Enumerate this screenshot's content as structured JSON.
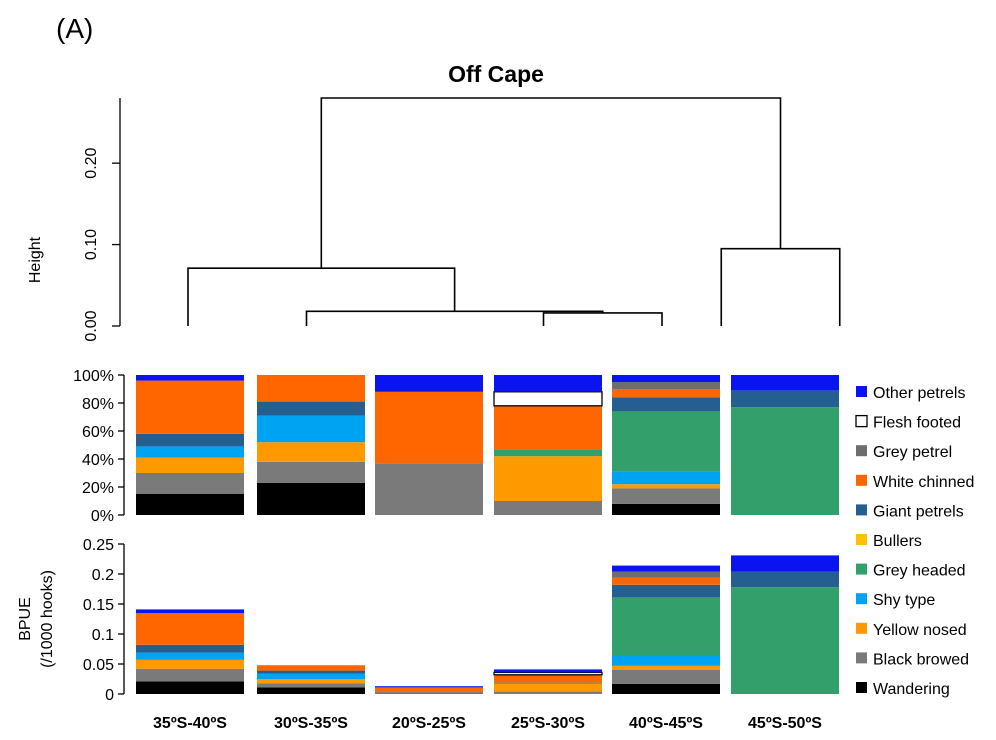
{
  "panel_label": "(A)",
  "title": "Off Cape",
  "dendrogram": {
    "ylabel": "Height",
    "yticks": [
      "0.00",
      "0.10",
      "0.20"
    ],
    "ticks_values": [
      0,
      0.1,
      0.2
    ],
    "ylim": [
      0,
      0.28
    ],
    "nodes": [
      {
        "name": "n1",
        "left": 3,
        "right": 4,
        "height": 0.016
      },
      {
        "name": "n2",
        "left": 1,
        "right": "n1",
        "height": 0.018
      },
      {
        "name": "n3",
        "left": 0,
        "right": "n2",
        "height": 0.071
      },
      {
        "name": "n4",
        "left": 4.5,
        "right": 5.5,
        "height": 0.095
      },
      {
        "name": "n5",
        "left": "n3",
        "right": "n4",
        "height": 0.28
      }
    ]
  },
  "chart_data": [
    {
      "type": "bar",
      "stacked": true,
      "ylabel": "",
      "ylim": [
        0,
        100
      ],
      "yticks": [
        "0%",
        "20%",
        "40%",
        "60%",
        "80%",
        "100%"
      ],
      "tick_values": [
        0,
        20,
        40,
        60,
        80,
        100
      ],
      "categories": [
        "35ºS-40ºS",
        "30ºS-35ºS",
        "20ºS-25ºS",
        "25ºS-30ºS",
        "40ºS-45ºS",
        "45ºS-50ºS"
      ],
      "series": [
        {
          "name": "Wandering",
          "values": [
            15,
            23,
            0,
            0,
            8,
            0
          ]
        },
        {
          "name": "Black browed",
          "values": [
            15,
            15,
            37,
            10,
            11,
            0
          ]
        },
        {
          "name": "Yellow nosed",
          "values": [
            11,
            14,
            0,
            32,
            3,
            0
          ]
        },
        {
          "name": "Shy type",
          "values": [
            8,
            19,
            0,
            0,
            9,
            0
          ]
        },
        {
          "name": "Grey headed",
          "values": [
            0,
            0,
            0,
            5,
            43,
            77
          ]
        },
        {
          "name": "Bullers",
          "values": [
            0,
            0,
            0,
            0,
            0,
            0
          ]
        },
        {
          "name": "Giant petrels",
          "values": [
            9,
            10,
            0,
            0,
            10,
            12
          ]
        },
        {
          "name": "White chinned",
          "values": [
            38,
            19,
            51,
            31,
            6,
            0
          ]
        },
        {
          "name": "Grey petrel",
          "values": [
            0,
            0,
            0,
            0,
            5,
            0
          ]
        },
        {
          "name": "Flesh footed",
          "values": [
            0,
            0,
            0,
            10,
            0,
            0
          ]
        },
        {
          "name": "Other petrels",
          "values": [
            4,
            0,
            12,
            12,
            5,
            11
          ]
        }
      ]
    },
    {
      "type": "bar",
      "stacked": true,
      "ylabel": "BPUE",
      "ylabel2": "(/1000 hooks)",
      "ylim": [
        0,
        0.25
      ],
      "yticks": [
        "0",
        "0.05",
        "0.1",
        "0.15",
        "0.2",
        "0.25"
      ],
      "tick_values": [
        0,
        0.05,
        0.1,
        0.15,
        0.2,
        0.25
      ],
      "categories": [
        "35ºS-40ºS",
        "30ºS-35ºS",
        "20ºS-25ºS",
        "25ºS-30ºS",
        "40ºS-45ºS",
        "45ºS-50ºS"
      ],
      "series": [
        {
          "name": "Wandering",
          "values": [
            0.021,
            0.011,
            0,
            0,
            0.017,
            0
          ]
        },
        {
          "name": "Black browed",
          "values": [
            0.021,
            0.007,
            0.004,
            0.004,
            0.023,
            0
          ]
        },
        {
          "name": "Yellow nosed",
          "values": [
            0.015,
            0.007,
            0,
            0.013,
            0.007,
            0
          ]
        },
        {
          "name": "Shy type",
          "values": [
            0.012,
            0.009,
            0,
            0,
            0.018,
            0
          ]
        },
        {
          "name": "Grey headed",
          "values": [
            0,
            0,
            0,
            0.002,
            0.096,
            0.178
          ]
        },
        {
          "name": "Bullers",
          "values": [
            0,
            0,
            0,
            0,
            0,
            0
          ]
        },
        {
          "name": "Giant petrels",
          "values": [
            0.013,
            0.005,
            0,
            0,
            0.021,
            0.026
          ]
        },
        {
          "name": "White chinned",
          "values": [
            0.053,
            0.009,
            0.007,
            0.013,
            0.012,
            0
          ]
        },
        {
          "name": "Grey petrel",
          "values": [
            0,
            0,
            0,
            0,
            0.01,
            0
          ]
        },
        {
          "name": "Flesh footed",
          "values": [
            0,
            0,
            0,
            0.004,
            0,
            0
          ]
        },
        {
          "name": "Other petrels",
          "values": [
            0.006,
            0,
            0.002,
            0.005,
            0.01,
            0.027
          ]
        }
      ]
    }
  ],
  "legend": {
    "items": [
      {
        "name": "Other petrels",
        "color": "#0a14f0"
      },
      {
        "name": "Flesh footed",
        "color": "#ffffff"
      },
      {
        "name": "Grey petrel",
        "color": "#6e6e6e"
      },
      {
        "name": "White chinned",
        "color": "#ff6600"
      },
      {
        "name": "Giant petrels",
        "color": "#255e91"
      },
      {
        "name": "Bullers",
        "color": "#ffc000"
      },
      {
        "name": "Grey headed",
        "color": "#33a06b"
      },
      {
        "name": "Shy type",
        "color": "#00a2f2"
      },
      {
        "name": "Yellow nosed",
        "color": "#ff9900"
      },
      {
        "name": "Black browed",
        "color": "#7a7a7a"
      },
      {
        "name": "Wandering",
        "color": "#000000"
      }
    ]
  }
}
